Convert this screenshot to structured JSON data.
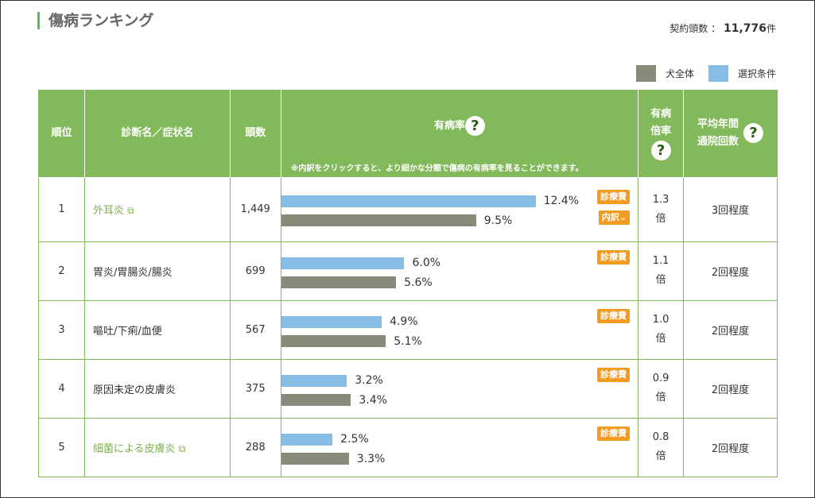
{
  "title": "傷病ランキング",
  "contract_label": "契約頭数 ：",
  "contract_count": "11,776",
  "contract_unit": "件",
  "legend": [
    {
      "label": "犬全体",
      "color": "#8a8a7a"
    },
    {
      "label": "選択条件",
      "color": "#88bde6"
    }
  ],
  "headers": {
    "rank": "順位",
    "name": "診断名／症状名",
    "count": "頭数",
    "rate": "有病率",
    "rate_note": "※内訳をクリックすると、より細かな分類で傷病の有病率を見ることができます。",
    "ratio1": "有病",
    "ratio2": "倍率",
    "visits1": "平均年間",
    "visits2": "通院回数",
    "help": "?"
  },
  "buttons": {
    "cost": "診療費",
    "breakdown": "内訳"
  },
  "rows": [
    {
      "rank": "1",
      "name": "外耳炎",
      "link": true,
      "count": "1,449",
      "selected": 12.4,
      "selected_label": "12.4%",
      "all": 9.5,
      "all_label": "9.5%",
      "ratio": "1.3",
      "ratio_unit": "倍",
      "visits": "3回程度",
      "breakdown": true
    },
    {
      "rank": "2",
      "name": "胃炎/胃腸炎/腸炎",
      "link": false,
      "count": "699",
      "selected": 6.0,
      "selected_label": "6.0%",
      "all": 5.6,
      "all_label": "5.6%",
      "ratio": "1.1",
      "ratio_unit": "倍",
      "visits": "2回程度",
      "breakdown": false
    },
    {
      "rank": "3",
      "name": "嘔吐/下痢/血便",
      "link": false,
      "count": "567",
      "selected": 4.9,
      "selected_label": "4.9%",
      "all": 5.1,
      "all_label": "5.1%",
      "ratio": "1.0",
      "ratio_unit": "倍",
      "visits": "2回程度",
      "breakdown": false
    },
    {
      "rank": "4",
      "name": "原因未定の皮膚炎",
      "link": false,
      "count": "375",
      "selected": 3.2,
      "selected_label": "3.2%",
      "all": 3.4,
      "all_label": "3.4%",
      "ratio": "0.9",
      "ratio_unit": "倍",
      "visits": "2回程度",
      "breakdown": false
    },
    {
      "rank": "5",
      "name": "細菌による皮膚炎",
      "link": true,
      "count": "288",
      "selected": 2.5,
      "selected_label": "2.5%",
      "all": 3.3,
      "all_label": "3.3%",
      "ratio": "0.8",
      "ratio_unit": "倍",
      "visits": "2回程度",
      "breakdown": false
    }
  ]
}
